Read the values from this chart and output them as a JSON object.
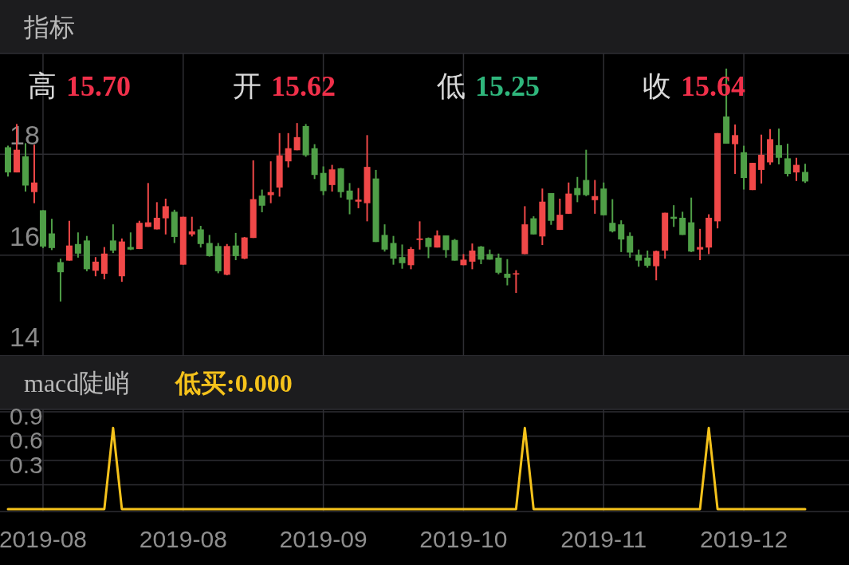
{
  "chart_data": [
    {
      "type": "candlestick",
      "title": "指标",
      "annotations": [
        "高 15.70",
        "开 15.62",
        "低 15.25",
        "收 15.64"
      ],
      "categories": [
        null,
        null,
        null,
        null,
        "2019-08",
        null,
        null,
        null,
        null,
        null,
        null,
        null,
        null,
        null,
        null,
        null,
        null,
        null,
        null,
        null,
        "2019-08",
        null,
        null,
        null,
        null,
        null,
        null,
        null,
        null,
        null,
        null,
        null,
        null,
        null,
        null,
        null,
        "2019-09",
        null,
        null,
        null,
        null,
        null,
        null,
        null,
        null,
        null,
        null,
        null,
        null,
        null,
        null,
        null,
        "2019-10",
        null,
        null,
        null,
        null,
        null,
        null,
        null,
        null,
        null,
        null,
        null,
        null,
        null,
        null,
        null,
        "2019-11",
        null,
        null,
        null,
        null,
        null,
        null,
        null,
        null,
        null,
        null,
        null,
        null,
        null,
        null,
        null,
        "2019-12",
        null,
        null,
        null,
        null,
        null,
        null,
        null
      ],
      "ohlc": [
        [
          18.14,
          18.17,
          17.56,
          17.64
        ],
        [
          17.64,
          18.6,
          17.64,
          18.09
        ],
        [
          17.96,
          18.22,
          17.26,
          17.38
        ],
        [
          17.25,
          18.19,
          17.03,
          17.44
        ],
        [
          16.89,
          16.89,
          16.14,
          16.17
        ],
        [
          16.43,
          16.72,
          16.1,
          16.14
        ],
        [
          15.86,
          15.93,
          15.08,
          15.66
        ],
        [
          15.89,
          16.68,
          15.89,
          16.19
        ],
        [
          16.22,
          16.45,
          15.95,
          16.03
        ],
        [
          16.29,
          16.38,
          15.68,
          15.72
        ],
        [
          15.69,
          15.96,
          15.58,
          15.87
        ],
        [
          15.63,
          16.16,
          15.52,
          16.03
        ],
        [
          16.29,
          16.61,
          16.04,
          16.09
        ],
        [
          15.58,
          16.33,
          15.47,
          16.27
        ],
        [
          16.16,
          16.45,
          16.1,
          16.11
        ],
        [
          16.12,
          16.68,
          16.12,
          16.64
        ],
        [
          16.56,
          17.43,
          16.56,
          16.65
        ],
        [
          16.51,
          17.05,
          16.51,
          16.74
        ],
        [
          16.73,
          17.12,
          16.41,
          16.97
        ],
        [
          16.86,
          16.9,
          16.24,
          16.36
        ],
        [
          15.81,
          16.76,
          15.81,
          16.76
        ],
        [
          16.41,
          16.76,
          16.37,
          16.47
        ],
        [
          16.51,
          16.58,
          16.15,
          16.22
        ],
        [
          16.24,
          16.4,
          15.97,
          15.98
        ],
        [
          16.18,
          16.24,
          15.64,
          15.68
        ],
        [
          15.61,
          16.22,
          15.6,
          16.18
        ],
        [
          16.19,
          16.44,
          15.9,
          15.98
        ],
        [
          15.93,
          16.36,
          15.92,
          16.35
        ],
        [
          16.34,
          17.88,
          16.34,
          17.11
        ],
        [
          17.18,
          17.3,
          16.85,
          16.98
        ],
        [
          17.19,
          17.86,
          17.03,
          17.25
        ],
        [
          17.34,
          18.42,
          17.16,
          17.98
        ],
        [
          17.86,
          18.42,
          17.74,
          18.12
        ],
        [
          18.08,
          18.62,
          18.08,
          18.34
        ],
        [
          18.56,
          18.6,
          17.95,
          17.98
        ],
        [
          18.12,
          18.2,
          17.51,
          17.59
        ],
        [
          17.63,
          17.76,
          17.19,
          17.27
        ],
        [
          17.39,
          17.79,
          17.26,
          17.7
        ],
        [
          17.72,
          17.73,
          17.14,
          17.25
        ],
        [
          17.28,
          17.43,
          16.81,
          17.1
        ],
        [
          17.06,
          17.33,
          16.93,
          17.1
        ],
        [
          17.03,
          18.38,
          16.67,
          17.75
        ],
        [
          17.52,
          17.69,
          16.26,
          16.26
        ],
        [
          16.4,
          16.61,
          16.07,
          16.11
        ],
        [
          16.24,
          16.38,
          15.81,
          15.93
        ],
        [
          15.96,
          16.21,
          15.73,
          15.84
        ],
        [
          15.8,
          16.16,
          15.72,
          16.12
        ],
        [
          16.3,
          16.67,
          16.11,
          16.33
        ],
        [
          16.34,
          16.35,
          15.94,
          16.16
        ],
        [
          16.15,
          16.49,
          16.15,
          16.39
        ],
        [
          16.39,
          16.39,
          15.95,
          16.1
        ],
        [
          16.3,
          16.32,
          15.89,
          15.89
        ],
        [
          15.8,
          16.02,
          15.8,
          15.91
        ],
        [
          15.87,
          16.23,
          15.72,
          16.09
        ],
        [
          16.17,
          16.18,
          15.82,
          15.91
        ],
        [
          16.02,
          16.11,
          15.91,
          15.91
        ],
        [
          15.95,
          16.03,
          15.62,
          15.65
        ],
        [
          15.63,
          15.92,
          15.4,
          15.55
        ],
        [
          15.62,
          15.7,
          15.25,
          15.64
        ],
        [
          16.02,
          16.97,
          16.02,
          16.61
        ],
        [
          16.73,
          16.77,
          16.41,
          16.41
        ],
        [
          16.37,
          17.32,
          16.2,
          17.06
        ],
        [
          17.23,
          17.23,
          16.6,
          16.68
        ],
        [
          16.5,
          17.12,
          16.5,
          16.8
        ],
        [
          16.82,
          17.44,
          16.82,
          17.22
        ],
        [
          17.33,
          17.55,
          17.05,
          17.19
        ],
        [
          17.49,
          18.09,
          17.17,
          17.19
        ],
        [
          17.09,
          17.49,
          16.82,
          17.17
        ],
        [
          17.32,
          17.44,
          16.79,
          16.79
        ],
        [
          16.64,
          17.11,
          16.45,
          16.47
        ],
        [
          16.61,
          16.69,
          16.06,
          16.31
        ],
        [
          16.38,
          16.45,
          15.95,
          16.05
        ],
        [
          16.01,
          16.11,
          15.77,
          15.89
        ],
        [
          15.95,
          16.09,
          15.75,
          15.79
        ],
        [
          15.78,
          16.09,
          15.5,
          16.08
        ],
        [
          16.09,
          16.84,
          15.93,
          16.84
        ],
        [
          16.76,
          16.99,
          16.56,
          16.72
        ],
        [
          16.74,
          16.86,
          16.4,
          16.4
        ],
        [
          16.65,
          17.14,
          16.06,
          16.07
        ],
        [
          16.11,
          16.52,
          15.9,
          16.16
        ],
        [
          16.15,
          16.81,
          16.02,
          16.74
        ],
        [
          16.67,
          18.42,
          16.53,
          18.42
        ],
        [
          18.75,
          19.7,
          18.21,
          18.21
        ],
        [
          18.2,
          18.59,
          17.61,
          18.38
        ],
        [
          18.04,
          18.17,
          17.3,
          17.53
        ],
        [
          17.29,
          17.83,
          17.29,
          17.83
        ],
        [
          17.69,
          18.39,
          17.42,
          17.99
        ],
        [
          17.84,
          18.5,
          17.79,
          18.3
        ],
        [
          18.18,
          18.51,
          17.8,
          17.93
        ],
        [
          17.92,
          18.21,
          17.56,
          17.61
        ],
        [
          17.64,
          17.93,
          17.47,
          17.79
        ],
        [
          17.65,
          17.81,
          17.43,
          17.46
        ]
      ],
      "colors": [
        "#4f9f47",
        "#f04848",
        "#4f9f47",
        "#f04848",
        "#4f9f47",
        "#4f9f47",
        "#4f9f47",
        "#f04848",
        "#4f9f47",
        "#4f9f47",
        "#f04848",
        "#f04848",
        "#4f9f47",
        "#f04848",
        "#4f9f47",
        "#f04848",
        "#f04848",
        "#f04848",
        "#f04848",
        "#4f9f47",
        "#f04848",
        "#f04848",
        "#4f9f47",
        "#4f9f47",
        "#4f9f47",
        "#f04848",
        "#4f9f47",
        "#f04848",
        "#f04848",
        "#4f9f47",
        "#f04848",
        "#f04848",
        "#f04848",
        "#f04848",
        "#4f9f47",
        "#4f9f47",
        "#4f9f47",
        "#f04848",
        "#4f9f47",
        "#4f9f47",
        "#f04848",
        "#f04848",
        "#4f9f47",
        "#4f9f47",
        "#4f9f47",
        "#4f9f47",
        "#f04848",
        "#f04848",
        "#4f9f47",
        "#f04848",
        "#4f9f47",
        "#4f9f47",
        "#f04848",
        "#f04848",
        "#4f9f47",
        "#4f9f47",
        "#4f9f47",
        "#4f9f47",
        "#f04848",
        "#f04848",
        "#4f9f47",
        "#f04848",
        "#4f9f47",
        "#f04848",
        "#f04848",
        "#4f9f47",
        "#4f9f47",
        "#f04848",
        "#4f9f47",
        "#4f9f47",
        "#4f9f47",
        "#4f9f47",
        "#4f9f47",
        "#4f9f47",
        "#f04848",
        "#f04848",
        "#4f9f47",
        "#4f9f47",
        "#4f9f47",
        "#f04848",
        "#f04848",
        "#f04848",
        "#4f9f47",
        "#f04848",
        "#4f9f47",
        "#f04848",
        "#f04848",
        "#f04848",
        "#4f9f47",
        "#4f9f47",
        "#f04848",
        "#4f9f47"
      ],
      "ylim": [
        14,
        20
      ],
      "yticks": [
        14,
        16,
        18
      ],
      "grid": true,
      "tick_labels": "y"
    },
    {
      "type": "line",
      "title": "macd陡峭",
      "categories": [
        null,
        null,
        null,
        null,
        "2019-08",
        null,
        null,
        null,
        null,
        null,
        null,
        null,
        null,
        null,
        null,
        null,
        null,
        null,
        null,
        null,
        "2019-08",
        null,
        null,
        null,
        null,
        null,
        null,
        null,
        null,
        null,
        null,
        null,
        null,
        null,
        null,
        null,
        "2019-09",
        null,
        null,
        null,
        null,
        null,
        null,
        null,
        null,
        null,
        null,
        null,
        null,
        null,
        null,
        null,
        "2019-10",
        null,
        null,
        null,
        null,
        null,
        null,
        null,
        null,
        null,
        null,
        null,
        null,
        null,
        null,
        null,
        "2019-11",
        null,
        null,
        null,
        null,
        null,
        null,
        null,
        null,
        null,
        null,
        null,
        null,
        null,
        null,
        null,
        "2019-12",
        null,
        null,
        null,
        null,
        null,
        null,
        null
      ],
      "series": [
        {
          "name": "低买:0.000",
          "color": "#f5c21b",
          "values": [
            -0.3,
            -0.3,
            -0.3,
            -0.3,
            -0.3,
            -0.3,
            -0.3,
            -0.3,
            -0.3,
            -0.3,
            -0.3,
            -0.3,
            0.7,
            -0.3,
            -0.3,
            -0.3,
            -0.3,
            -0.3,
            -0.3,
            -0.3,
            -0.3,
            -0.3,
            -0.3,
            -0.3,
            -0.3,
            -0.3,
            -0.3,
            -0.3,
            -0.3,
            -0.3,
            -0.3,
            -0.3,
            -0.3,
            -0.3,
            -0.3,
            -0.3,
            -0.3,
            -0.3,
            -0.3,
            -0.3,
            -0.3,
            -0.3,
            -0.3,
            -0.3,
            -0.3,
            -0.3,
            -0.3,
            -0.3,
            -0.3,
            -0.3,
            -0.3,
            -0.3,
            -0.3,
            -0.3,
            -0.3,
            -0.3,
            -0.3,
            -0.3,
            -0.3,
            0.7,
            -0.3,
            -0.3,
            -0.3,
            -0.3,
            -0.3,
            -0.3,
            -0.3,
            -0.3,
            -0.3,
            -0.3,
            -0.3,
            -0.3,
            -0.3,
            -0.3,
            -0.3,
            -0.3,
            -0.3,
            -0.3,
            -0.3,
            -0.3,
            0.7,
            -0.3,
            -0.3,
            -0.3,
            -0.3,
            -0.3,
            -0.3,
            -0.3,
            -0.3,
            -0.3,
            -0.3,
            -0.3
          ]
        }
      ],
      "ylim": [
        -0.33,
        0.93
      ],
      "yticks": [
        {
          "value": 0,
          "label": null
        },
        0.3,
        0.6,
        0.9
      ],
      "grid": true,
      "legend": "top left",
      "marker": "none"
    }
  ]
}
